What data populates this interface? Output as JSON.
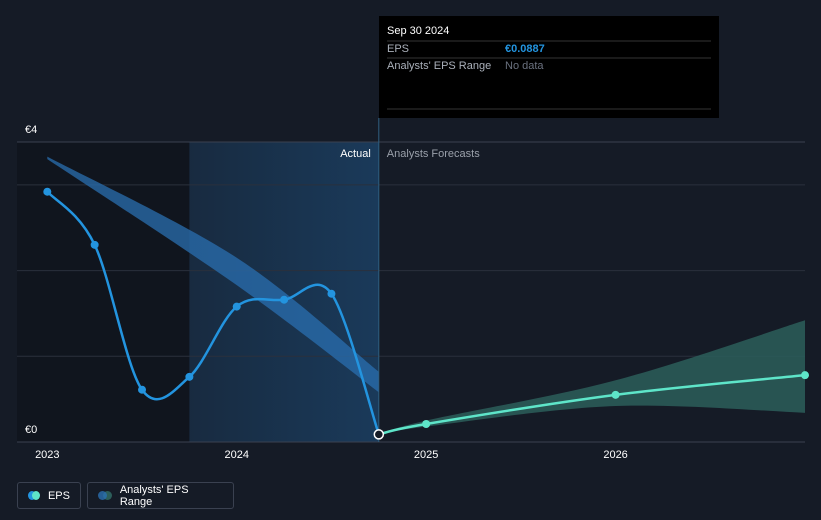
{
  "chart_data": {
    "type": "line",
    "xlim": [
      2022.84,
      2027.0
    ],
    "xticks": [
      2023,
      2024,
      2025,
      2026
    ],
    "ylim": [
      0,
      3.5
    ],
    "yticks": [
      {
        "value": 0,
        "label": "€0"
      },
      {
        "value": 3.5,
        "label": "€4"
      }
    ],
    "ygrid": [
      1,
      2,
      3
    ],
    "past_shade": [
      2022.84,
      2023.75
    ],
    "highlight": [
      2023.75,
      2024.75
    ],
    "divider_x": 2024.75,
    "divider_labels": {
      "actual": "Actual",
      "forecast": "Analysts Forecasts"
    },
    "series": [
      {
        "name": "EPS",
        "color": "#2394df",
        "x": [
          2023.0,
          2023.25,
          2023.5,
          2023.75,
          2024.0,
          2024.25,
          2024.5,
          2024.75
        ],
        "values": [
          2.92,
          2.3,
          0.61,
          0.76,
          1.58,
          1.66,
          1.73,
          0.0887
        ]
      }
    ],
    "forecast": {
      "color": "#5ee5c9",
      "x": [
        2024.75,
        2025.0,
        2026.0,
        2027.0
      ],
      "values": [
        0.0887,
        0.21,
        0.55,
        0.78
      ]
    },
    "range": {
      "name": "Analysts' EPS Range",
      "color": "#2c5e5a",
      "x": [
        2024.75,
        2025.0,
        2026.0,
        2027.0
      ],
      "low": [
        0.0887,
        0.18,
        0.42,
        0.34
      ],
      "high": [
        0.0887,
        0.25,
        0.72,
        1.42
      ]
    },
    "past_range": {
      "color": "#2a6fb0",
      "x": [
        2023.0,
        2024.0,
        2024.75
      ],
      "low": [
        3.3,
        1.83,
        0.58
      ],
      "high": [
        3.33,
        2.15,
        0.82
      ]
    },
    "tooltip": {
      "date": "Sep 30 2024",
      "rows": [
        {
          "label": "EPS",
          "value": "€0.0887"
        },
        {
          "label": "Analysts' EPS Range",
          "value": "No data"
        }
      ]
    }
  }
}
